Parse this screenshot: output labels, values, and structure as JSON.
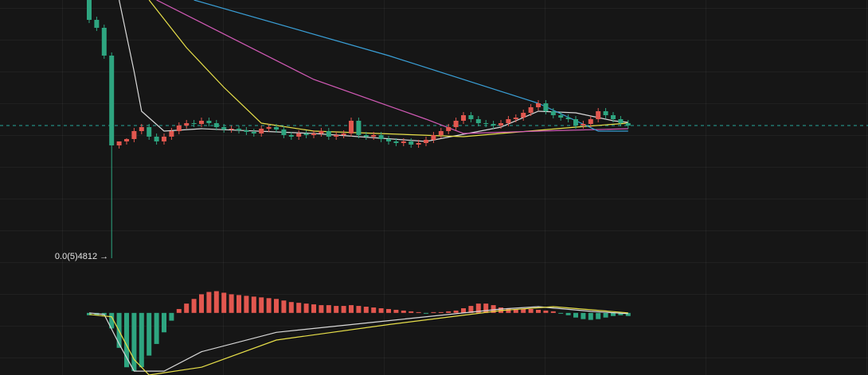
{
  "chart_data": [
    {
      "type": "candlestick",
      "open": [
        340,
        315,
        305,
        270,
        157,
        162,
        165,
        175,
        180,
        168,
        162,
        168,
        175,
        182,
        185,
        184,
        188,
        185,
        180,
        177,
        178,
        176,
        174,
        172,
        178,
        180,
        177,
        170,
        168,
        172,
        170,
        172,
        175,
        168,
        170,
        172,
        188,
        170,
        168,
        170,
        165,
        162,
        160,
        162,
        158,
        160,
        164,
        170,
        175,
        180,
        188,
        195,
        190,
        185,
        184,
        182,
        185,
        190,
        192,
        198,
        205,
        210,
        200,
        195,
        192,
        190,
        182,
        184,
        190,
        200,
        195,
        190,
        185
      ],
      "high": [
        344,
        319,
        309,
        274,
        161,
        166,
        179,
        184,
        184,
        172,
        172,
        179,
        186,
        189,
        189,
        192,
        192,
        189,
        184,
        182,
        182,
        180,
        178,
        182,
        184,
        184,
        181,
        174,
        176,
        176,
        176,
        179,
        179,
        174,
        176,
        192,
        192,
        174,
        174,
        174,
        169,
        166,
        166,
        166,
        164,
        168,
        174,
        179,
        184,
        192,
        199,
        199,
        194,
        189,
        188,
        189,
        194,
        196,
        202,
        209,
        214,
        214,
        204,
        199,
        196,
        194,
        188,
        194,
        204,
        204,
        199,
        194,
        189
      ],
      "low": [
        311,
        301,
        266,
        15,
        153,
        158,
        161,
        171,
        164,
        158,
        158,
        164,
        171,
        178,
        180,
        180,
        181,
        176,
        173,
        173,
        172,
        170,
        168,
        168,
        174,
        173,
        166,
        164,
        164,
        166,
        166,
        168,
        164,
        164,
        166,
        168,
        166,
        164,
        164,
        161,
        158,
        156,
        156,
        154,
        154,
        156,
        160,
        166,
        171,
        176,
        184,
        186,
        181,
        180,
        178,
        178,
        181,
        186,
        188,
        194,
        201,
        196,
        191,
        188,
        186,
        178,
        178,
        180,
        186,
        191,
        186,
        181,
        178
      ],
      "close": [
        315,
        305,
        270,
        157,
        162,
        165,
        175,
        180,
        168,
        162,
        168,
        175,
        182,
        185,
        184,
        188,
        185,
        180,
        177,
        178,
        176,
        174,
        172,
        178,
        180,
        177,
        170,
        168,
        172,
        170,
        172,
        175,
        168,
        170,
        172,
        188,
        170,
        168,
        170,
        165,
        162,
        160,
        162,
        158,
        160,
        164,
        170,
        175,
        180,
        188,
        195,
        190,
        185,
        184,
        182,
        185,
        190,
        192,
        198,
        205,
        210,
        200,
        195,
        192,
        190,
        182,
        184,
        190,
        200,
        195,
        190,
        185,
        182
      ],
      "ylim": [
        0,
        340
      ],
      "up_color": "#e2574f",
      "down_color": "#2ea580",
      "price_line": 182,
      "price_line_color": "#26a69a",
      "low_label": "0.0(5)4812 →",
      "series": [
        {
          "color": "#d9d9d9",
          "x": [
            4,
            6,
            7,
            10,
            15,
            30,
            45,
            55,
            60,
            65,
            70,
            72
          ],
          "values": [
            340,
            250,
            200,
            175,
            178,
            172,
            162,
            180,
            200,
            198,
            188,
            186
          ]
        },
        {
          "color": "#e8e04a",
          "x": [
            8,
            13,
            18,
            23,
            30,
            50,
            65,
            72
          ],
          "values": [
            340,
            280,
            230,
            185,
            175,
            168,
            180,
            185
          ]
        },
        {
          "color": "#d45bb8",
          "x": [
            9,
            30,
            45,
            50,
            60,
            72
          ],
          "values": [
            340,
            240,
            190,
            172,
            175,
            178
          ]
        },
        {
          "color": "#3aa0d8",
          "x": [
            14,
            40,
            60,
            68,
            72
          ],
          "values": [
            340,
            270,
            210,
            175,
            175
          ]
        }
      ]
    },
    {
      "type": "macd",
      "values": [
        -3,
        -3,
        -3,
        -20,
        -45,
        -70,
        -75,
        -70,
        -55,
        -40,
        -25,
        -10,
        5,
        12,
        18,
        24,
        27,
        28,
        26,
        24,
        23,
        22,
        21,
        20,
        19,
        18,
        16,
        14,
        13,
        12,
        11,
        10,
        10,
        9,
        9,
        10,
        9,
        8,
        7,
        6,
        5,
        4,
        3,
        2,
        1,
        -1,
        1,
        1,
        2,
        3,
        6,
        9,
        12,
        12,
        10,
        7,
        6,
        5,
        5,
        5,
        4,
        3,
        2,
        -1,
        -3,
        -6,
        -8,
        -9,
        -8,
        -6,
        -4,
        -3,
        -4
      ],
      "ylim": [
        -80,
        50
      ],
      "up_color": "#e2574f",
      "down_color": "#2ea580",
      "series": [
        {
          "color": "#d9d9d9",
          "x": [
            0,
            2,
            4,
            6,
            10,
            15,
            25,
            40,
            55,
            60,
            67,
            72
          ],
          "values": [
            0,
            -2,
            -40,
            -75,
            -75,
            -50,
            -25,
            -10,
            5,
            8,
            2,
            -1
          ]
        },
        {
          "color": "#e8e04a",
          "x": [
            0,
            3,
            6,
            8,
            15,
            25,
            40,
            55,
            62,
            72
          ],
          "values": [
            -2,
            -5,
            -60,
            -80,
            -70,
            -35,
            -15,
            3,
            8,
            0
          ]
        }
      ]
    }
  ]
}
